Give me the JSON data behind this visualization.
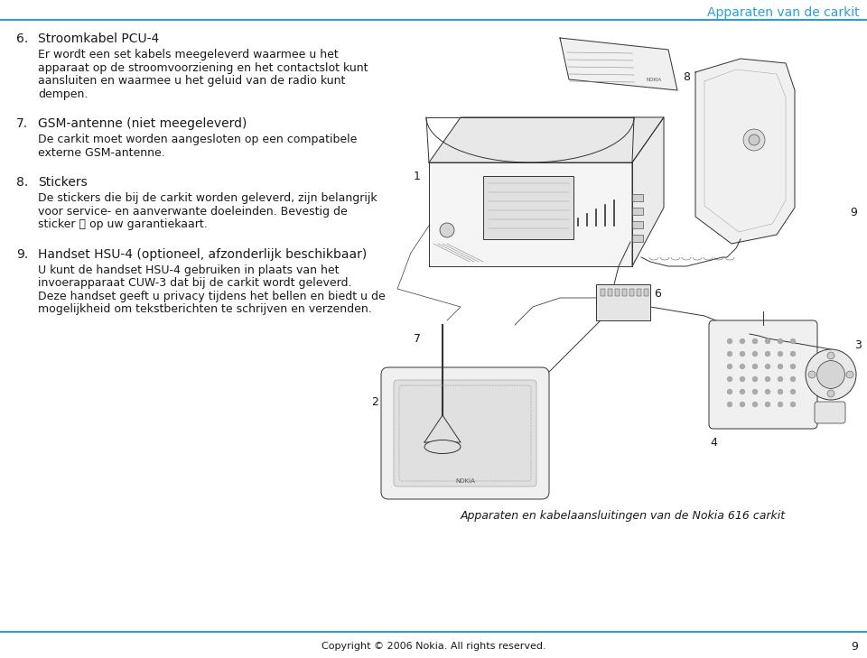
{
  "title_header": "Apparaten van de carkit",
  "header_color": "#2B9ED4",
  "header_line_color": "#2B9ED4",
  "bg_color": "#FFFFFF",
  "text_color": "#1A1A1A",
  "footer_text": "Copyright © 2006 Nokia. All rights reserved.",
  "footer_page": "9",
  "footer_line_color": "#2B9ED4",
  "caption": "Apparaten en kabelaansluitingen van de Nokia 616 carkit",
  "sections": [
    {
      "number": "6.",
      "heading": "Stroomkabel PCU-4",
      "body": "Er wordt een set kabels meegeleverd waarmee u het\napparaat op de stroomvoorziening en het contactslot kunt\naansluiten en waarmee u het geluid van de radio kunt\ndempen."
    },
    {
      "number": "7.",
      "heading": "GSM-antenne (niet meegeleverd)",
      "body": "De carkit moet worden aangesloten op een compatibele\nexterne GSM-antenne."
    },
    {
      "number": "8.",
      "heading": "Stickers",
      "body": "De stickers die bij de carkit worden geleverd, zijn belangrijk\nvoor service- en aanverwante doeleinden. Bevestig de\nsticker Ⓑ op uw garantiekaart."
    },
    {
      "number": "9.",
      "heading": "Handset HSU-4 (optioneel, afzonderlijk beschikbaar)",
      "body": "U kunt de handset HSU-4 gebruiken in plaats van het\ninvoerapparaat CUW-3 dat bij de carkit wordt geleverd.\nDeze handset geeft u privacy tijdens het bellen en biedt u de\nmogelijkheid om tekstberichten te schrijven en verzenden."
    }
  ],
  "font_size_heading": 10,
  "font_size_body": 9,
  "font_size_header": 10,
  "font_size_footer": 8,
  "font_size_caption": 9,
  "font_size_num": 10
}
